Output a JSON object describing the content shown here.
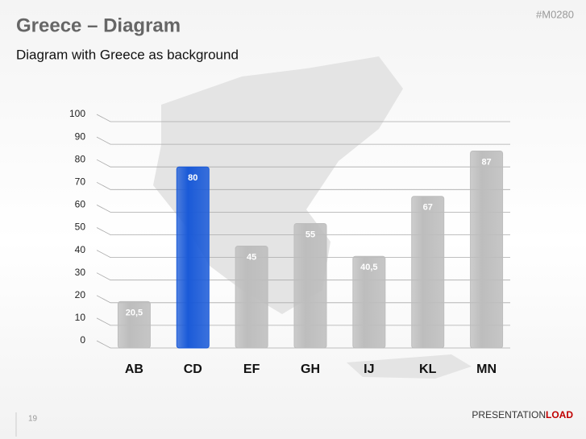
{
  "title": "Greece – Diagram",
  "subtitle": "Diagram with Greece as background",
  "code": "#M0280",
  "page_number": "19",
  "logo": [
    "PRESENTATION",
    "LOAD"
  ],
  "chart_data": {
    "type": "bar",
    "categories": [
      "AB",
      "CD",
      "EF",
      "GH",
      "IJ",
      "KL",
      "MN"
    ],
    "values": [
      20.5,
      80,
      45,
      55,
      40.5,
      67,
      87
    ],
    "value_labels": [
      "20,5",
      "80",
      "45",
      "55",
      "40,5",
      "67",
      "87"
    ],
    "colors": [
      "#bdbdbd",
      "#1a5ad8",
      "#bdbdbd",
      "#bdbdbd",
      "#bdbdbd",
      "#bdbdbd",
      "#bdbdbd"
    ],
    "ylim": [
      0,
      100
    ],
    "yticks": [
      0,
      10,
      20,
      30,
      40,
      50,
      60,
      70,
      80,
      90,
      100
    ],
    "grid": true
  }
}
